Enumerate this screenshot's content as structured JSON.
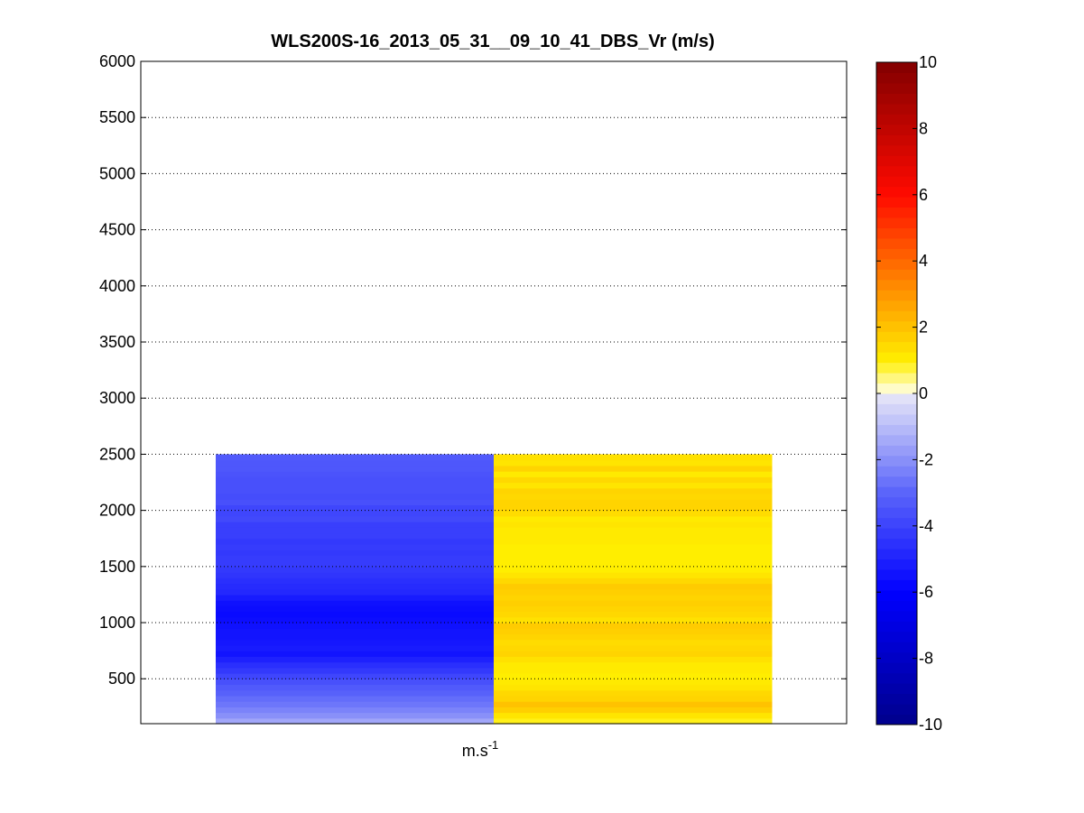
{
  "chart_data": {
    "type": "heatmap",
    "title": "WLS200S-16_2013_05_31__09_10_41_DBS_Vr (m/s)",
    "xlabel": "m.s",
    "xlabel_superscript": "-1",
    "ylabel": "",
    "ylim": [
      100,
      6000
    ],
    "yticks": [
      500,
      1000,
      1500,
      2000,
      2500,
      3000,
      3500,
      4000,
      4500,
      5000,
      5500,
      6000
    ],
    "ygrid": true,
    "grid_style": "dotted",
    "data_top_altitude": 2500,
    "data_bottom_altitude": 100,
    "columns": 2,
    "column_values": [
      [
        -1.5,
        -2.0,
        -2.3,
        -2.6,
        -2.8,
        -3.1,
        -3.3,
        -3.6,
        -3.9,
        -4.3,
        -4.6,
        -5.0,
        -5.4,
        -5.2,
        -5.3,
        -5.4,
        -5.4,
        -5.5,
        -5.6,
        -5.7,
        -5.6,
        -5.5,
        -5.2,
        -4.8,
        -4.7,
        -4.6,
        -4.4,
        -4.3,
        -4.2,
        -4.2,
        -4.3,
        -4.2,
        -4.3,
        -4.1,
        -4.1,
        -4.1,
        -3.8,
        -3.9,
        -3.9,
        -3.6,
        -3.7,
        -3.6,
        -3.6,
        -3.6,
        -3.5,
        -3.4,
        -3.4,
        -3.3
      ],
      [
        0.9,
        1.2,
        1.7,
        2.0,
        1.6,
        1.5,
        1.2,
        1.1,
        1.0,
        1.1,
        1.1,
        1.3,
        1.6,
        1.5,
        1.4,
        1.6,
        1.7,
        1.8,
        1.3,
        1.5,
        1.6,
        1.7,
        1.6,
        1.7,
        1.8,
        1.5,
        1.2,
        1.0,
        1.0,
        1.0,
        1.0,
        1.0,
        1.1,
        1.1,
        1.1,
        1.2,
        1.1,
        1.4,
        1.6,
        1.6,
        1.5,
        1.6,
        1.2,
        1.5,
        1.1,
        1.6,
        1.2,
        1.3
      ]
    ],
    "colorbar": {
      "min": -10,
      "max": 10,
      "ticks": [
        -10,
        -8,
        -6,
        -4,
        -2,
        0,
        2,
        4,
        6,
        8,
        10
      ],
      "levels": 64
    }
  }
}
